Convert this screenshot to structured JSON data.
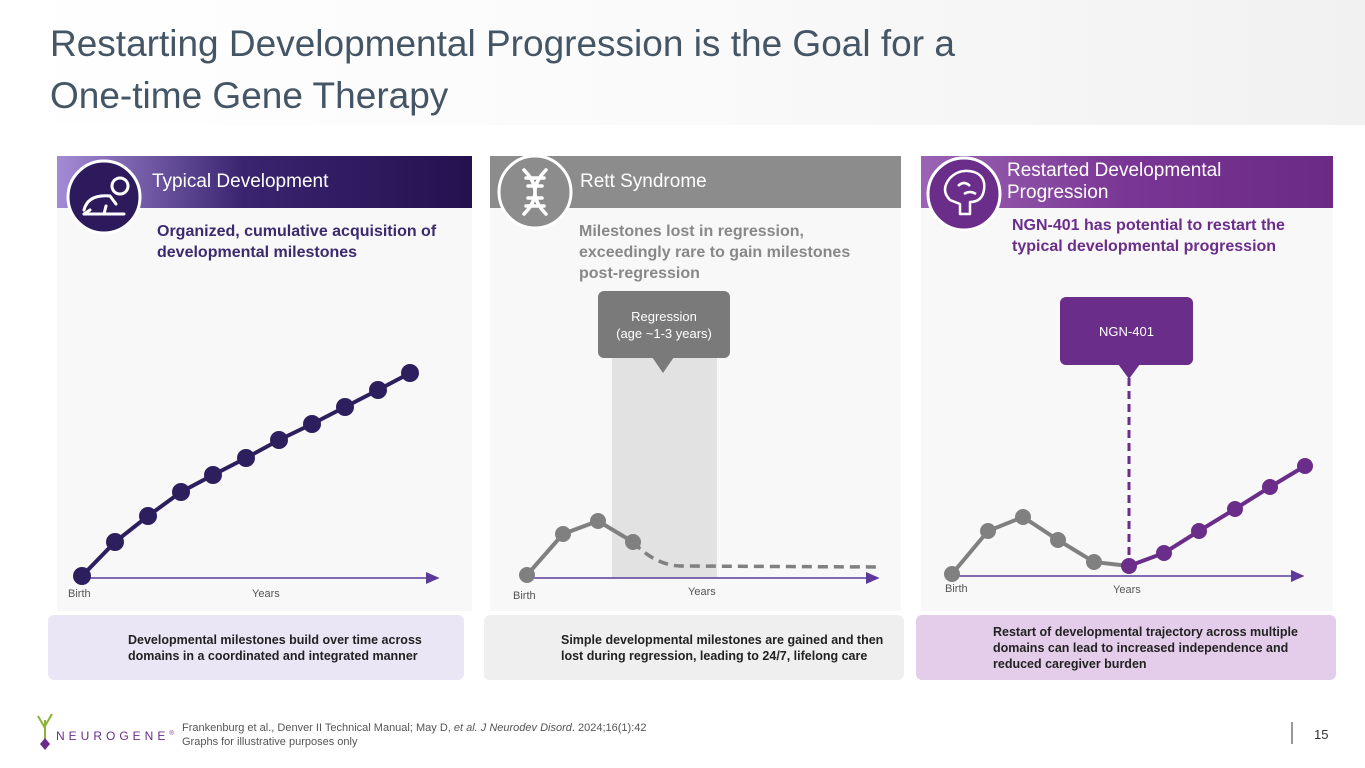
{
  "header": {
    "title": "Restarting Developmental Progression is the Goal for a One-time Gene Therapy"
  },
  "panels": [
    {
      "title": "Typical Development",
      "subtitle": "Organized, cumulative acquisition of developmental milestones",
      "x_start": "Birth",
      "x_end": "Years",
      "note": "Developmental milestones build over time across domains in a coordinated and integrated manner"
    },
    {
      "title": "Rett Syndrome",
      "subtitle": "Milestones lost in regression, exceedingly rare to gain milestones post-regression",
      "callout": [
        "Regression",
        "(age ~1-3 years)"
      ],
      "x_start": "Birth",
      "x_end": "Years",
      "note": "Simple developmental milestones are gained and then lost during regression, leading to 24/7, lifelong care"
    },
    {
      "title": "Restarted Developmental Progression",
      "subtitle": "NGN-401 has potential to restart the typical developmental progression",
      "callout": [
        "NGN-401"
      ],
      "x_start": "Birth",
      "x_end": "Years",
      "note": "Restart of developmental trajectory across multiple domains can lead to increased independence and reduced caregiver burden"
    }
  ],
  "footer": {
    "logo": "NEUROGENE",
    "logo_mark": "®",
    "citation": [
      "Frankenburg et al., Denver II Technical Manual; May D, ",
      "et al. J Neurodev Disord",
      ". 2024;16(1):42"
    ],
    "disclaimer": "Graphs for illustrative purposes only",
    "page": "15"
  }
}
